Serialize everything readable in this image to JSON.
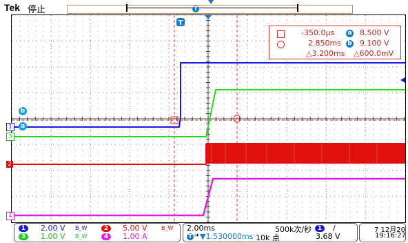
{
  "header": {
    "brand": "Tek",
    "state": "停止"
  },
  "colors": {
    "ch1": "#1a1ad6",
    "ch2": "#e01010",
    "ch3": "#22dd22",
    "ch4": "#e020e0",
    "cursor": "#e03030"
  },
  "markers": {
    "ch1": "1",
    "ch2": "2",
    "ch3": "3",
    "ch4": "4",
    "trigger": "T",
    "cursor_a": "a",
    "cursor_b": "b"
  },
  "cursor_readout": {
    "a_time": "-350.0μs",
    "a_label": "a",
    "a_value": "8.500 V",
    "b_time": "2.850ms",
    "b_label": "b",
    "b_value": "9.100 V",
    "delta_time": "△3.200ms",
    "delta_value": "△600.0mV"
  },
  "channels": [
    {
      "num": "1",
      "scale": "2.00 V",
      "bw": "B_W"
    },
    {
      "num": "2",
      "scale": "5.00 V",
      "bw": "B_W"
    },
    {
      "num": "3",
      "scale": "1.00 V",
      "bw": "B_W"
    },
    {
      "num": "4",
      "scale": "1.00 A",
      "bw": ""
    }
  ],
  "timebase": {
    "scale": "2.00ms",
    "position": "▼1.530000ms",
    "sample_rate": "500k次/秒",
    "record": "10k 点"
  },
  "trigger": {
    "source": "1",
    "slope": "/",
    "level": "3.68 V"
  },
  "datetime": {
    "date": "7 12月20",
    "time": "19:16:27"
  }
}
